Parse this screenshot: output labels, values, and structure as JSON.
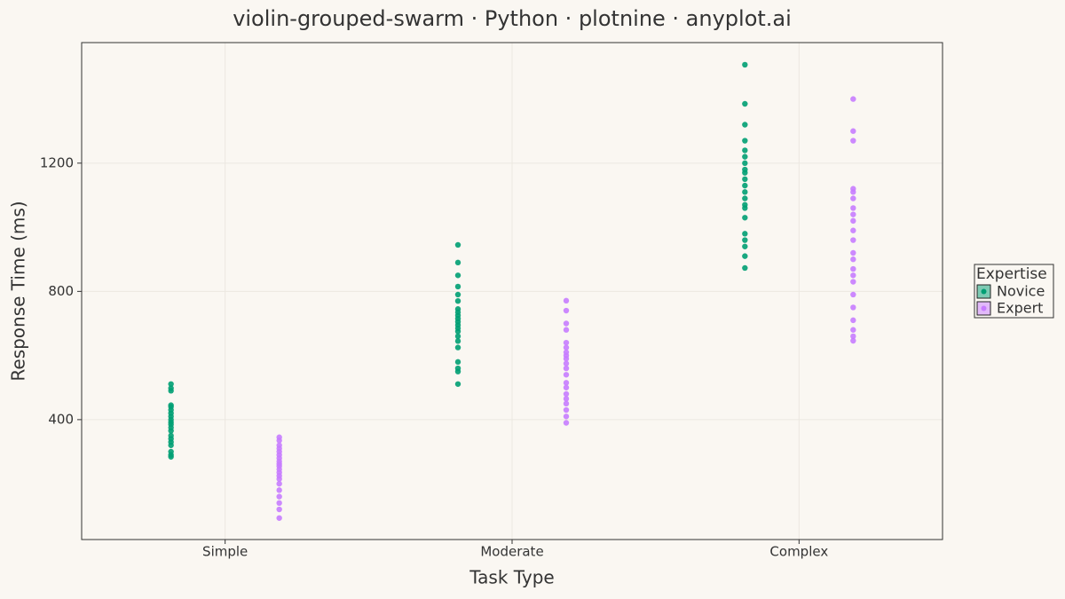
{
  "chart_data": {
    "type": "violin",
    "title": "violin-grouped-swarm · Python · plotnine · anyplot.ai",
    "x_label": "Task Type",
    "y_label": "Response Time (ms)",
    "categories": [
      "Simple",
      "Moderate",
      "Complex"
    ],
    "legend_title": "Expertise",
    "legend_position": "right",
    "series": [
      {
        "name": "Novice",
        "color": "#009E73",
        "values": [
          [
            511,
            498,
            490,
            445,
            440,
            430,
            420,
            410,
            400,
            392,
            385,
            375,
            365,
            350,
            340,
            330,
            320,
            300,
            290,
            284
          ],
          [
            945,
            890,
            850,
            815,
            790,
            770,
            745,
            735,
            725,
            715,
            705,
            695,
            685,
            675,
            660,
            645,
            625,
            580,
            560,
            550,
            511
          ],
          [
            1507,
            1385,
            1320,
            1270,
            1240,
            1220,
            1200,
            1180,
            1170,
            1150,
            1130,
            1110,
            1090,
            1070,
            1060,
            1030,
            980,
            960,
            940,
            910,
            873
          ]
        ]
      },
      {
        "name": "Expert",
        "color": "#C77CFF",
        "values": [
          [
            345,
            335,
            320,
            310,
            300,
            290,
            280,
            270,
            262,
            255,
            245,
            235,
            225,
            215,
            200,
            180,
            160,
            140,
            120,
            93
          ],
          [
            771,
            740,
            700,
            680,
            640,
            625,
            610,
            600,
            590,
            575,
            560,
            540,
            515,
            500,
            480,
            465,
            450,
            430,
            410,
            390
          ],
          [
            1400,
            1300,
            1270,
            1120,
            1110,
            1090,
            1060,
            1040,
            1020,
            990,
            960,
            920,
            900,
            870,
            850,
            830,
            790,
            750,
            710,
            680,
            660,
            646
          ]
        ]
      }
    ],
    "ylim": [
      26,
      1576
    ],
    "yticks": [
      400,
      800,
      1200
    ],
    "grid": true
  }
}
